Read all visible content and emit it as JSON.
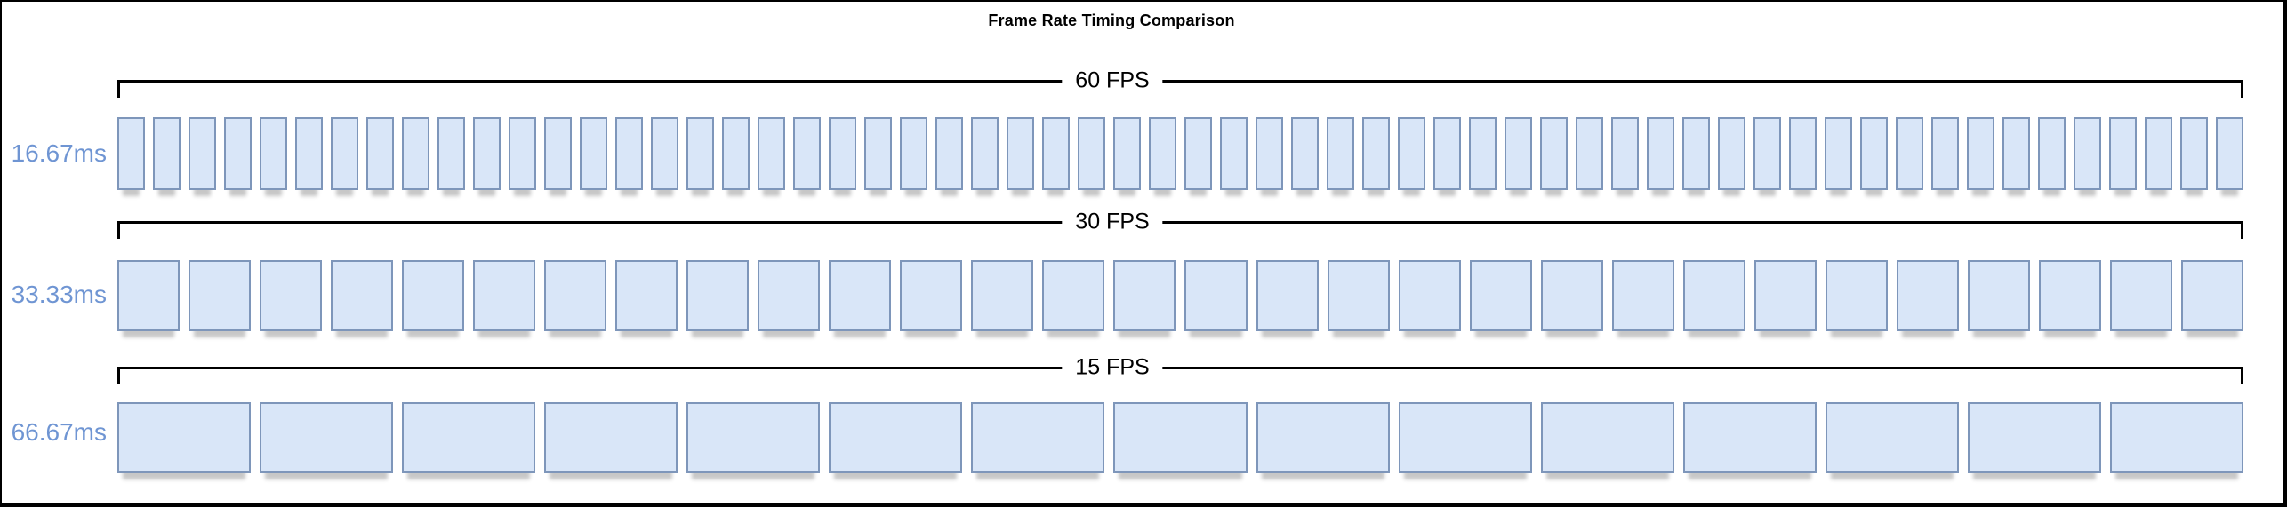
{
  "title": "Frame Rate Timing Comparison",
  "rows": [
    {
      "id": "60fps",
      "fps_label": "60 FPS",
      "frame_time_label": "16.67ms",
      "frame_count": 60
    },
    {
      "id": "30fps",
      "fps_label": "30 FPS",
      "frame_time_label": "33.33ms",
      "frame_count": 30
    },
    {
      "id": "15fps",
      "fps_label": "15 FPS",
      "frame_time_label": "66.67ms",
      "frame_count": 15
    }
  ],
  "colors": {
    "background": "#ffffff",
    "frame_border": "#000000",
    "bracket": "#000000",
    "box_fill": "#d9e6f8",
    "box_border": "#7e96ba",
    "label_blue": "#6f95d3",
    "title_color": "#000000"
  }
}
